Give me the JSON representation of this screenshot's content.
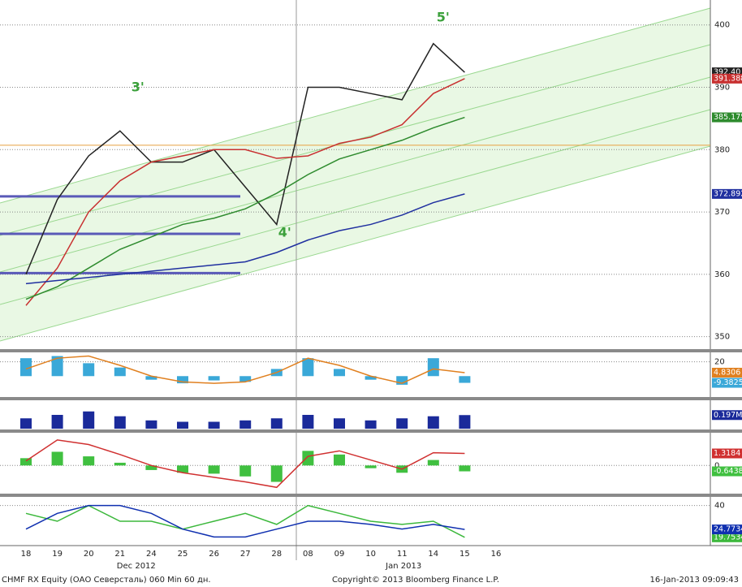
{
  "chart_data": [
    {
      "type": "line",
      "categories": [
        "18",
        "19",
        "20",
        "21",
        "24",
        "25",
        "26",
        "27",
        "28",
        "08",
        "09",
        "10",
        "11",
        "14",
        "15",
        "16"
      ],
      "x_groups": [
        "Dec 2012",
        "Jan 2013"
      ],
      "ylim": [
        348,
        404
      ],
      "yticks": [
        350,
        360,
        370,
        380,
        390,
        400
      ],
      "grid": true,
      "levels": [
        {
          "value": 380.7,
          "color": "#e8a040"
        },
        {
          "value": 372.5,
          "color": "#5a5ab8"
        },
        {
          "value": 366.5,
          "color": "#5a5ab8"
        },
        {
          "value": 360.2,
          "color": "#5a5ab8"
        }
      ],
      "annotations": [
        "3'",
        "4'",
        "5'"
      ],
      "series": [
        {
          "name": "price",
          "color": "#222222",
          "style": "line",
          "values": [
            360,
            372,
            379,
            383,
            378,
            378,
            380,
            374,
            368,
            390,
            390,
            389,
            388,
            397,
            392.4,
            null
          ],
          "last_label": "392.40"
        },
        {
          "name": "ma-red",
          "color": "#c83030",
          "style": "line",
          "values": [
            355,
            361,
            370,
            375,
            378,
            379,
            380,
            380,
            378.6,
            379,
            381,
            382,
            384,
            389,
            391.388,
            null
          ],
          "last_label": "391.388"
        },
        {
          "name": "ma-green",
          "color": "#2e8b2e",
          "style": "line",
          "values": [
            356,
            358,
            361,
            364,
            366,
            368,
            369,
            370.5,
            373,
            376,
            378.5,
            380,
            381.5,
            383.5,
            385.175,
            null
          ],
          "last_label": "385.175"
        },
        {
          "name": "ma-blue",
          "color": "#2030a0",
          "style": "line",
          "values": [
            358.5,
            359,
            359.5,
            360,
            360.5,
            361,
            361.5,
            362,
            363.5,
            365.5,
            367,
            368,
            369.5,
            371.5,
            372.892,
            null
          ],
          "last_label": "372.892"
        }
      ]
    },
    {
      "type": "bar",
      "ylim": [
        -28,
        32
      ],
      "yticks": [
        20
      ],
      "grid": true,
      "series": [
        {
          "name": "osc-hist",
          "color": "#3aa8d8",
          "style": "bar",
          "values": [
            25,
            28,
            18,
            12,
            -5,
            -10,
            -6,
            -8,
            10,
            25,
            10,
            -5,
            -12,
            25,
            -9.3825,
            null
          ],
          "last_label": "-9.3825"
        },
        {
          "name": "osc-line",
          "color": "#e08020",
          "style": "line",
          "values": [
            10,
            25,
            28,
            15,
            0,
            -8,
            -10,
            -8,
            5,
            25,
            15,
            0,
            -10,
            10,
            4.8306,
            null
          ],
          "last_label": "4.8306"
        }
      ]
    },
    {
      "type": "bar",
      "ylim": [
        0,
        0.4
      ],
      "yticks": [],
      "grid": false,
      "series": [
        {
          "name": "volume",
          "color": "#1a2a9a",
          "style": "bar",
          "values": [
            0.15,
            0.2,
            0.25,
            0.18,
            0.12,
            0.1,
            0.1,
            0.12,
            0.15,
            0.2,
            0.15,
            0.12,
            0.15,
            0.18,
            0.197,
            null
          ],
          "last_label": "0.197M"
        }
      ]
    },
    {
      "type": "bar",
      "ylim": [
        -3,
        3.5
      ],
      "yticks": [
        0
      ],
      "grid": true,
      "series": [
        {
          "name": "macd-hist",
          "color": "#40c040",
          "style": "bar",
          "values": [
            0.8,
            1.5,
            1.0,
            0.3,
            -0.5,
            -0.8,
            -0.9,
            -1.2,
            -1.8,
            1.6,
            1.2,
            -0.3,
            -0.8,
            0.6,
            -0.6438,
            null
          ],
          "last_label": "-0.6438"
        },
        {
          "name": "macd-line",
          "color": "#d03030",
          "style": "line",
          "values": [
            0.5,
            2.8,
            2.3,
            1.2,
            0,
            -0.8,
            -1.3,
            -1.8,
            -2.4,
            1.0,
            1.6,
            0.6,
            -0.4,
            1.4,
            1.3184,
            null
          ],
          "last_label": "1.3184"
        }
      ]
    },
    {
      "type": "line",
      "ylim": [
        15,
        45
      ],
      "yticks": [
        40
      ],
      "grid": true,
      "series": [
        {
          "name": "rsi-green",
          "color": "#3cb83c",
          "style": "line",
          "values": [
            35,
            30,
            40,
            30,
            30,
            25,
            30,
            35,
            28,
            40,
            35,
            30,
            28,
            30,
            19.7534,
            null
          ],
          "last_label": "19.7534"
        },
        {
          "name": "rsi-blue",
          "color": "#1030b0",
          "style": "line",
          "values": [
            25,
            35,
            40,
            40,
            35,
            25,
            20,
            20,
            25,
            30,
            30,
            28,
            25,
            28,
            24.7734,
            null
          ],
          "last_label": "24.7734"
        }
      ]
    }
  ],
  "footer": {
    "left": "CHMF RX Equity (ОАО Северсталь) 060 Min 60 дн.",
    "center": "Copyright© 2013 Bloomberg Finance L.P.",
    "right": "16-Jan-2013 09:09:43"
  }
}
